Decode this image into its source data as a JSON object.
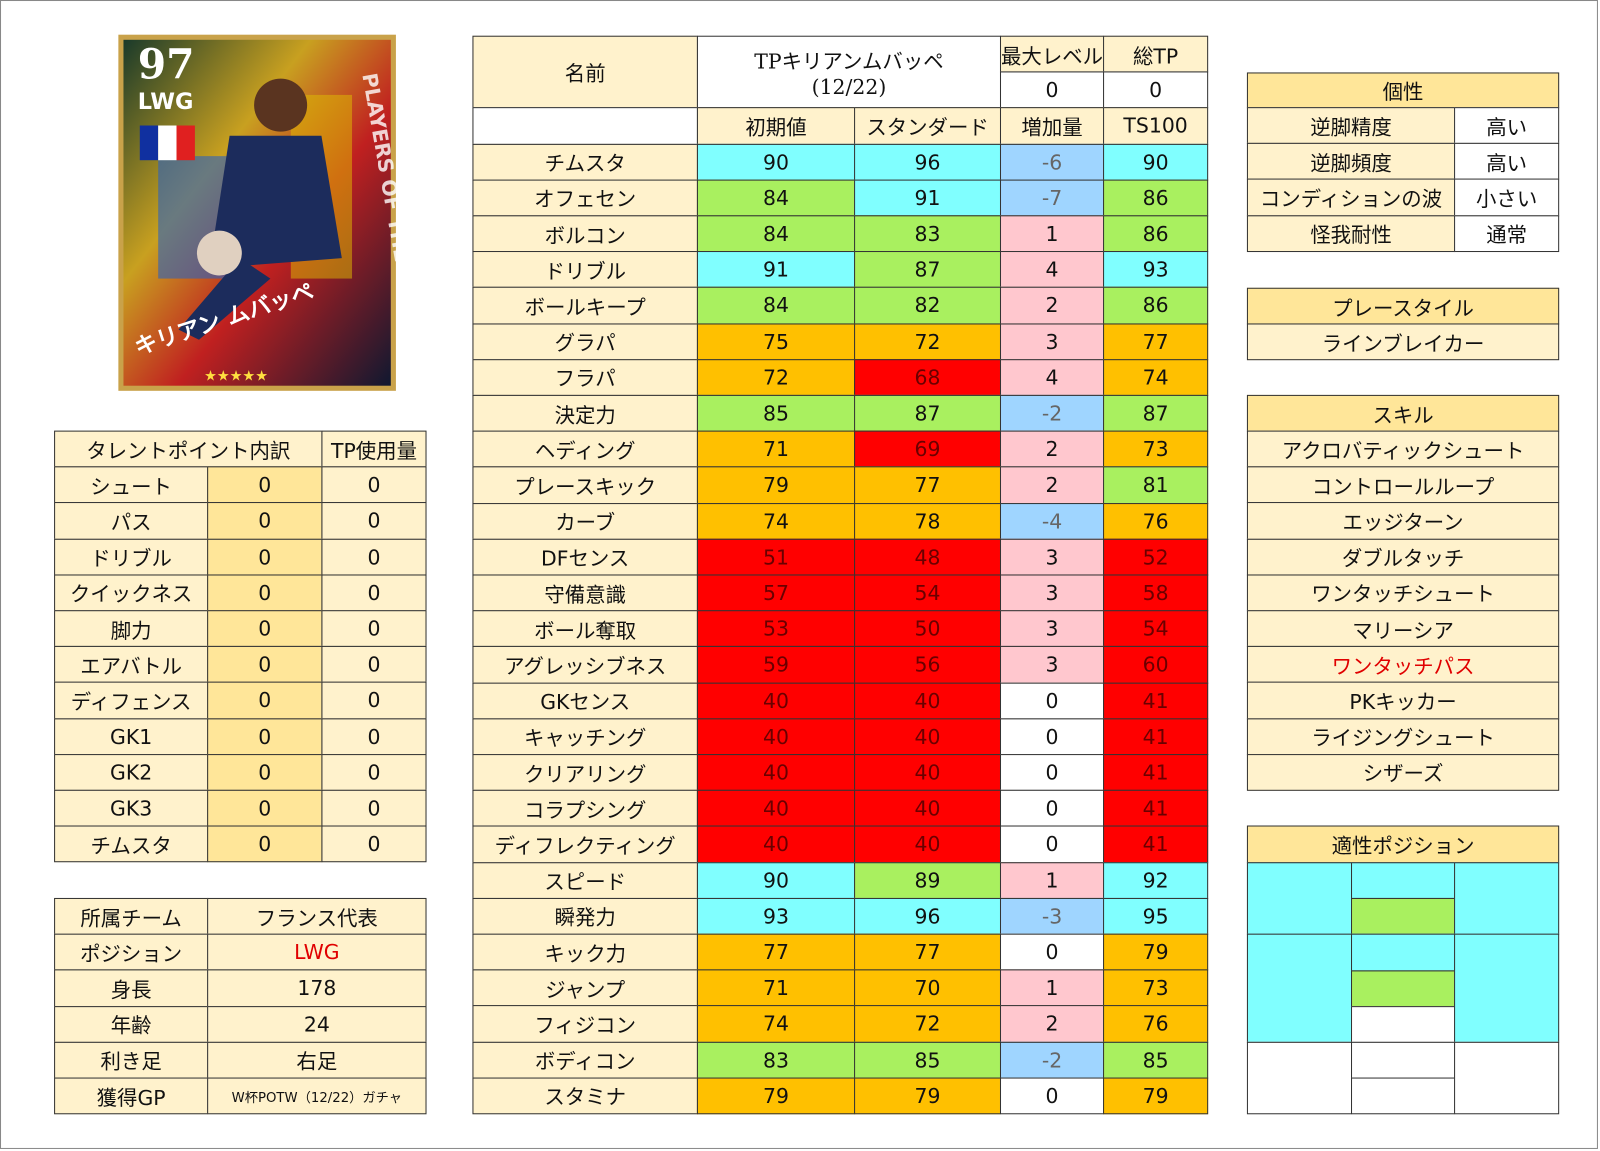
{
  "card": {
    "rating": "97",
    "position": "LWG",
    "name": "キリアン ムバッペ",
    "banner": "PLAYERS OF THE WEEK",
    "stars": "★★★★★"
  },
  "talent": {
    "header": [
      "タレントポイント内訳",
      "TP使用量"
    ],
    "rows": [
      [
        "シュート",
        "0",
        "0"
      ],
      [
        "パス",
        "0",
        "0"
      ],
      [
        "ドリブル",
        "0",
        "0"
      ],
      [
        "クイックネス",
        "0",
        "0"
      ],
      [
        "脚力",
        "0",
        "0"
      ],
      [
        "エアバトル",
        "0",
        "0"
      ],
      [
        "ディフェンス",
        "0",
        "0"
      ],
      [
        "GK1",
        "0",
        "0"
      ],
      [
        "GK2",
        "0",
        "0"
      ],
      [
        "GK3",
        "0",
        "0"
      ],
      [
        "チムスタ",
        "0",
        "0"
      ]
    ]
  },
  "profile": {
    "rows": [
      {
        "label": "所属チーム",
        "value": "フランス代表",
        "color": "#111"
      },
      {
        "label": "ポジション",
        "value": "LWG",
        "color": "#e00000"
      },
      {
        "label": "身長",
        "value": "178",
        "color": "#111"
      },
      {
        "label": "年齢",
        "value": "24",
        "color": "#111"
      },
      {
        "label": "利き足",
        "value": "右足",
        "color": "#111"
      },
      {
        "label": "獲得GP",
        "value": "W杯POTW（12/22）ガチャ",
        "color": "#111"
      }
    ]
  },
  "stats": {
    "name_label": "名前",
    "player_name": "TPキリアンムバッペ",
    "date": "(12/22)",
    "max_level_label": "最大レベル",
    "total_tp_label": "総TP",
    "max_level": 0,
    "total_tp": 0,
    "columns": [
      "初期値",
      "スタンダード",
      "増加量",
      "TS100"
    ],
    "rows": [
      [
        "チムスタ",
        90,
        96,
        -6,
        90
      ],
      [
        "オフェセン",
        84,
        91,
        -7,
        86
      ],
      [
        "ボルコン",
        84,
        83,
        1,
        86
      ],
      [
        "ドリブル",
        91,
        87,
        4,
        93
      ],
      [
        "ボールキープ",
        84,
        82,
        2,
        86
      ],
      [
        "グラパ",
        75,
        72,
        3,
        77
      ],
      [
        "フラパ",
        72,
        68,
        4,
        74
      ],
      [
        "決定力",
        85,
        87,
        -2,
        87
      ],
      [
        "ヘディング",
        71,
        69,
        2,
        73
      ],
      [
        "プレースキック",
        79,
        77,
        2,
        81
      ],
      [
        "カーブ",
        74,
        78,
        -4,
        76
      ],
      [
        "DFセンス",
        51,
        48,
        3,
        52
      ],
      [
        "守備意識",
        57,
        54,
        3,
        58
      ],
      [
        "ボール奪取",
        53,
        50,
        3,
        54
      ],
      [
        "アグレッシブネス",
        59,
        56,
        3,
        60
      ],
      [
        "GKセンス",
        40,
        40,
        0,
        41
      ],
      [
        "キャッチング",
        40,
        40,
        0,
        41
      ],
      [
        "クリアリング",
        40,
        40,
        0,
        41
      ],
      [
        "コラプシング",
        40,
        40,
        0,
        41
      ],
      [
        "ディフレクティング",
        40,
        40,
        0,
        41
      ],
      [
        "スピード",
        90,
        89,
        1,
        92
      ],
      [
        "瞬発力",
        93,
        96,
        -3,
        95
      ],
      [
        "キック力",
        77,
        77,
        0,
        79
      ],
      [
        "ジャンプ",
        71,
        70,
        1,
        73
      ],
      [
        "フィジコン",
        74,
        72,
        2,
        76
      ],
      [
        "ボディコン",
        83,
        85,
        -2,
        85
      ],
      [
        "スタミナ",
        79,
        79,
        0,
        79
      ]
    ]
  },
  "personality": {
    "title": "個性",
    "rows": [
      [
        "逆脚精度",
        "高い"
      ],
      [
        "逆脚頻度",
        "高い"
      ],
      [
        "コンディションの波",
        "小さい"
      ],
      [
        "怪我耐性",
        "通常"
      ]
    ]
  },
  "playstyle": {
    "title": "プレースタイル",
    "value": "ラインブレイカー"
  },
  "skills": {
    "title": "スキル",
    "items": [
      {
        "name": "アクロバティックシュート",
        "color": "#111"
      },
      {
        "name": "コントロールループ",
        "color": "#111"
      },
      {
        "name": "エッジターン",
        "color": "#111"
      },
      {
        "name": "ダブルタッチ",
        "color": "#111"
      },
      {
        "name": "ワンタッチシュート",
        "color": "#111"
      },
      {
        "name": "マリーシア",
        "color": "#111"
      },
      {
        "name": "ワンタッチパス",
        "color": "#e00000"
      },
      {
        "name": "PKキッカー",
        "color": "#111"
      },
      {
        "name": "ライジングシュート",
        "color": "#111"
      },
      {
        "name": "シザーズ",
        "color": "#111"
      }
    ]
  },
  "positions": {
    "title": "適性ポジション",
    "cells": [
      {
        "col": 0,
        "row": 0,
        "span": 2,
        "color": "#80ffff"
      },
      {
        "col": 0,
        "row": 2,
        "span": 3,
        "color": "#80ffff"
      },
      {
        "col": 0,
        "row": 5,
        "span": 2,
        "color": "#ffffff"
      },
      {
        "col": 1,
        "row": 0,
        "span": 1,
        "color": "#80ffff"
      },
      {
        "col": 1,
        "row": 1,
        "span": 1,
        "color": "#a9f05f"
      },
      {
        "col": 1,
        "row": 2,
        "span": 1,
        "color": "#80ffff"
      },
      {
        "col": 1,
        "row": 3,
        "span": 1,
        "color": "#a9f05f"
      },
      {
        "col": 1,
        "row": 4,
        "span": 1,
        "color": "#ffffff"
      },
      {
        "col": 1,
        "row": 5,
        "span": 1,
        "color": "#ffffff"
      },
      {
        "col": 1,
        "row": 6,
        "span": 1,
        "color": "#ffffff"
      },
      {
        "col": 2,
        "row": 0,
        "span": 2,
        "color": "#80ffff"
      },
      {
        "col": 2,
        "row": 2,
        "span": 3,
        "color": "#80ffff"
      },
      {
        "col": 2,
        "row": 5,
        "span": 2,
        "color": "#ffffff"
      }
    ]
  }
}
